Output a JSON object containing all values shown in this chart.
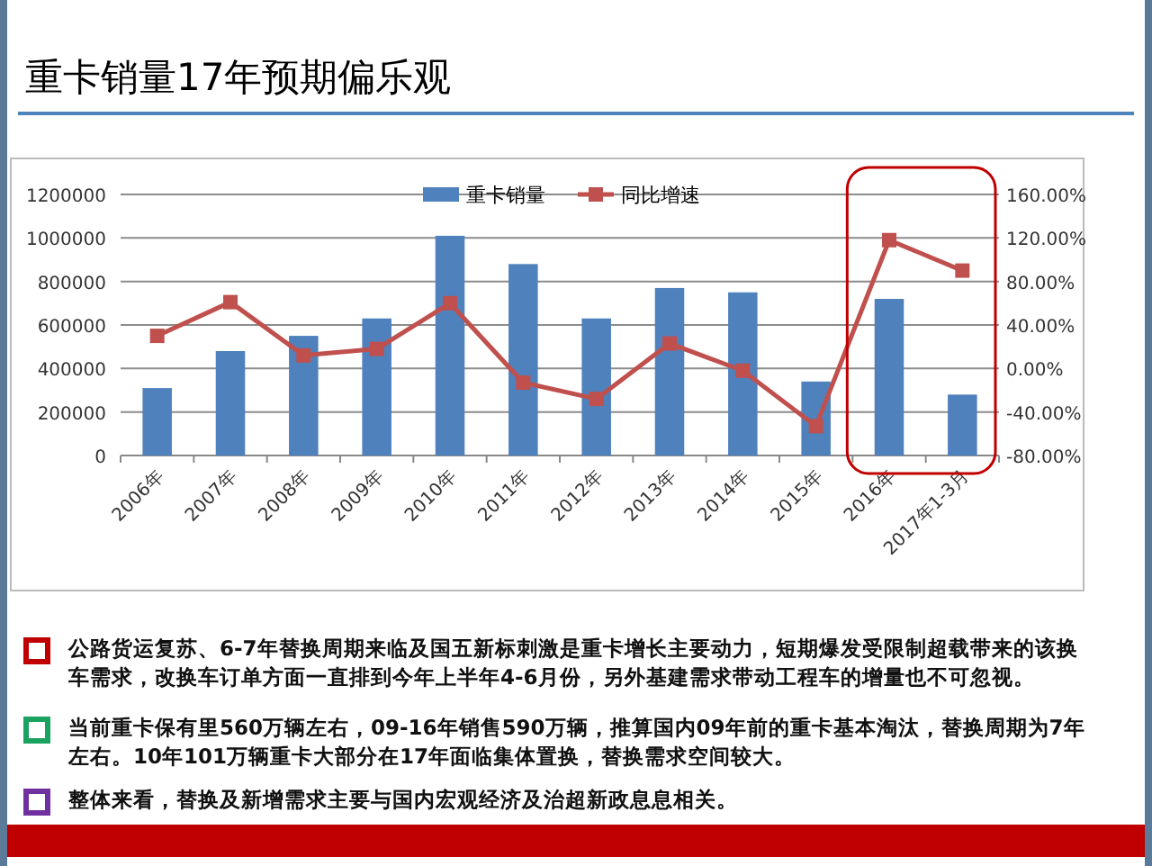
{
  "chart_data": {
    "type": "bar",
    "title": "重卡销量17年预期偏乐观",
    "categories": [
      "2006年",
      "2007年",
      "2008年",
      "2009年",
      "2010年",
      "2011年",
      "2012年",
      "2013年",
      "2014年",
      "2015年",
      "2016年",
      "2017年1-3月"
    ],
    "series": [
      {
        "name": "重卡销量",
        "color": "#4f81bd",
        "values": [
          310000,
          480000,
          550000,
          630000,
          1010000,
          880000,
          630000,
          770000,
          750000,
          340000,
          720000,
          280000
        ]
      },
      {
        "name": "同比增速",
        "type": "line",
        "axis": "y2",
        "color": "#c0504d",
        "values": [
          30,
          61,
          12,
          18,
          60,
          -13,
          -28,
          23,
          -2,
          -53,
          118,
          90
        ]
      }
    ],
    "ylim": [
      0,
      1200000
    ],
    "yticks": [
      0,
      200000,
      400000,
      600000,
      800000,
      1000000,
      1200000
    ],
    "y2lim": [
      -80,
      160
    ],
    "y2ticks": [
      {
        "value": -80,
        "label": "-80.00%"
      },
      {
        "value": -40,
        "label": "-40.00%"
      },
      {
        "value": 0,
        "label": "0.00%"
      },
      {
        "value": 40,
        "label": "40.00%"
      },
      {
        "value": 80,
        "label": "80.00%"
      },
      {
        "value": 120,
        "label": "120.00%"
      },
      {
        "value": 160,
        "label": "160.00%"
      }
    ],
    "grid": "y",
    "legend": "top",
    "marker": "square",
    "line_style": "solid",
    "annotations": [
      "公路货运复苏、6-7年替换周期来临及国五新标刺激是重卡增长主要动力，短期爆发受限制超载带来的该换车需求，改换车订单方面一直排到今年上半年4-6月份，另外基建需求带动工程车的增量也不可忽视。",
      "当前重卡保有里560万辆左右，09-16年销售590万辆，推算国内09年前的重卡基本淘汰，替换周期为7年左右。10年101万辆重卡大部分在17年面临集体置换，替换需求空间较大。",
      "整体来看，替换及新增需求主要与国内宏观经济及治超新政息息相关。"
    ]
  }
}
